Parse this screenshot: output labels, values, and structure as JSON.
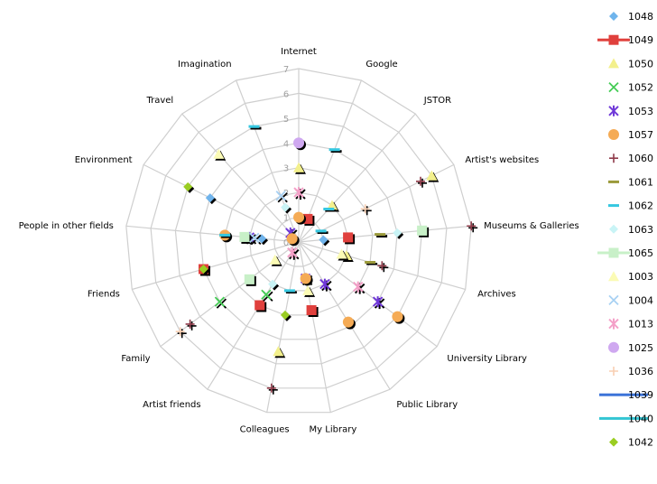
{
  "chart_data": {
    "type": "radar",
    "title": "",
    "rlim": [
      0,
      7
    ],
    "r_ticks": [
      "0",
      "1",
      "2",
      "3",
      "4",
      "5",
      "6",
      "7"
    ],
    "grid": true,
    "legend_position": "right",
    "axes": [
      "Internet",
      "Google",
      "JSTOR",
      "Artist's websites",
      "Museums & Galleries",
      "Archives",
      "University Library",
      "Public Library",
      "My Library",
      "Colleagues",
      "Artist friends",
      "Family",
      "Friends",
      "People in other fields",
      "Environment",
      "Travel",
      "Imagination"
    ],
    "series": [
      {
        "name": "1048",
        "color": "#6fb4ec",
        "marker": "diamond",
        "values": [
          [
            4,
            1.0
          ],
          [
            13,
            1.5
          ],
          [
            14,
            4.0
          ]
        ]
      },
      {
        "name": "1049",
        "color": "#e0403c",
        "marker": "square",
        "values": [
          [
            1,
            1.0
          ],
          [
            4,
            2.0
          ],
          [
            8,
            2.8
          ],
          [
            10,
            3.0
          ],
          [
            12,
            4.0
          ]
        ]
      },
      {
        "name": "1050",
        "color": "#f3f08c",
        "marker": "triangle",
        "values": [
          [
            0,
            3.0
          ],
          [
            2,
            2.0
          ],
          [
            5,
            2.0
          ],
          [
            9,
            4.5
          ],
          [
            3,
            6.0
          ]
        ]
      },
      {
        "name": "1052",
        "color": "#44cc55",
        "marker": "x",
        "values": [
          [
            10,
            2.5
          ],
          [
            11,
            4.0
          ]
        ]
      },
      {
        "name": "1053",
        "color": "#6f39d8",
        "marker": "star",
        "values": [
          [
            7,
            2.0
          ],
          [
            6,
            4.0
          ],
          [
            13,
            2.0
          ],
          [
            8,
            1.5
          ],
          [
            15,
            0.5
          ]
        ]
      },
      {
        "name": "1057",
        "color": "#f5ab55",
        "marker": "circle",
        "values": [
          [
            0,
            1.0
          ],
          [
            6,
            5.0
          ],
          [
            7,
            3.8
          ],
          [
            8,
            1.5
          ],
          [
            13,
            3.0
          ],
          [
            14,
            0.3
          ]
        ]
      },
      {
        "name": "1060",
        "color": "#8f3b4a",
        "marker": "plus",
        "values": [
          [
            3,
            5.5
          ],
          [
            5,
            3.5
          ],
          [
            9,
            6.0
          ],
          [
            11,
            5.5
          ],
          [
            4,
            7.0
          ]
        ]
      },
      {
        "name": "1061",
        "color": "#9b9a3a",
        "marker": "dash",
        "values": [
          [
            4,
            3.3
          ],
          [
            5,
            3.0
          ]
        ]
      },
      {
        "name": "1062",
        "color": "#35c7e0",
        "marker": "dash",
        "values": [
          [
            1,
            4.0
          ],
          [
            2,
            1.8
          ],
          [
            3,
            1.0
          ],
          [
            9,
            2.0
          ],
          [
            13,
            3.0
          ],
          [
            16,
            5.0
          ]
        ]
      },
      {
        "name": "1063",
        "color": "#c9f4f6",
        "marker": "diamond",
        "values": [
          [
            4,
            4.0
          ],
          [
            10,
            2.0
          ],
          [
            16,
            1.5
          ]
        ]
      },
      {
        "name": "1065",
        "color": "#c8f0c8",
        "marker": "square",
        "values": [
          [
            4,
            5.0
          ],
          [
            11,
            2.5
          ],
          [
            13,
            2.2
          ]
        ]
      },
      {
        "name": "1003",
        "color": "#fbfbb5",
        "marker": "triangle",
        "values": [
          [
            5,
            1.8
          ],
          [
            8,
            2.0
          ],
          [
            11,
            1.2
          ],
          [
            15,
            4.8
          ]
        ]
      },
      {
        "name": "1004",
        "color": "#a8d1f3",
        "marker": "x",
        "values": [
          [
            13,
            1.8
          ],
          [
            16,
            2.0
          ]
        ]
      },
      {
        "name": "1013",
        "color": "#f4a0c8",
        "marker": "star",
        "values": [
          [
            0,
            2.0
          ],
          [
            6,
            3.0
          ],
          [
            10,
            0.5
          ]
        ]
      },
      {
        "name": "1025",
        "color": "#cfa8f0",
        "marker": "circle",
        "values": [
          [
            0,
            4.0
          ]
        ]
      },
      {
        "name": "1036",
        "color": "#f8cfb2",
        "marker": "plus",
        "values": [
          [
            11,
            6.0
          ],
          [
            3,
            3.0
          ]
        ]
      },
      {
        "name": "1039",
        "color": "#3b73d8",
        "marker": "line",
        "values": []
      },
      {
        "name": "1040",
        "color": "#33c5d3",
        "marker": "line",
        "values": []
      },
      {
        "name": "1042",
        "color": "#9acd21",
        "marker": "diamond",
        "values": [
          [
            12,
            4.0
          ],
          [
            14,
            5.0
          ],
          [
            9,
            3.0
          ]
        ]
      }
    ]
  }
}
